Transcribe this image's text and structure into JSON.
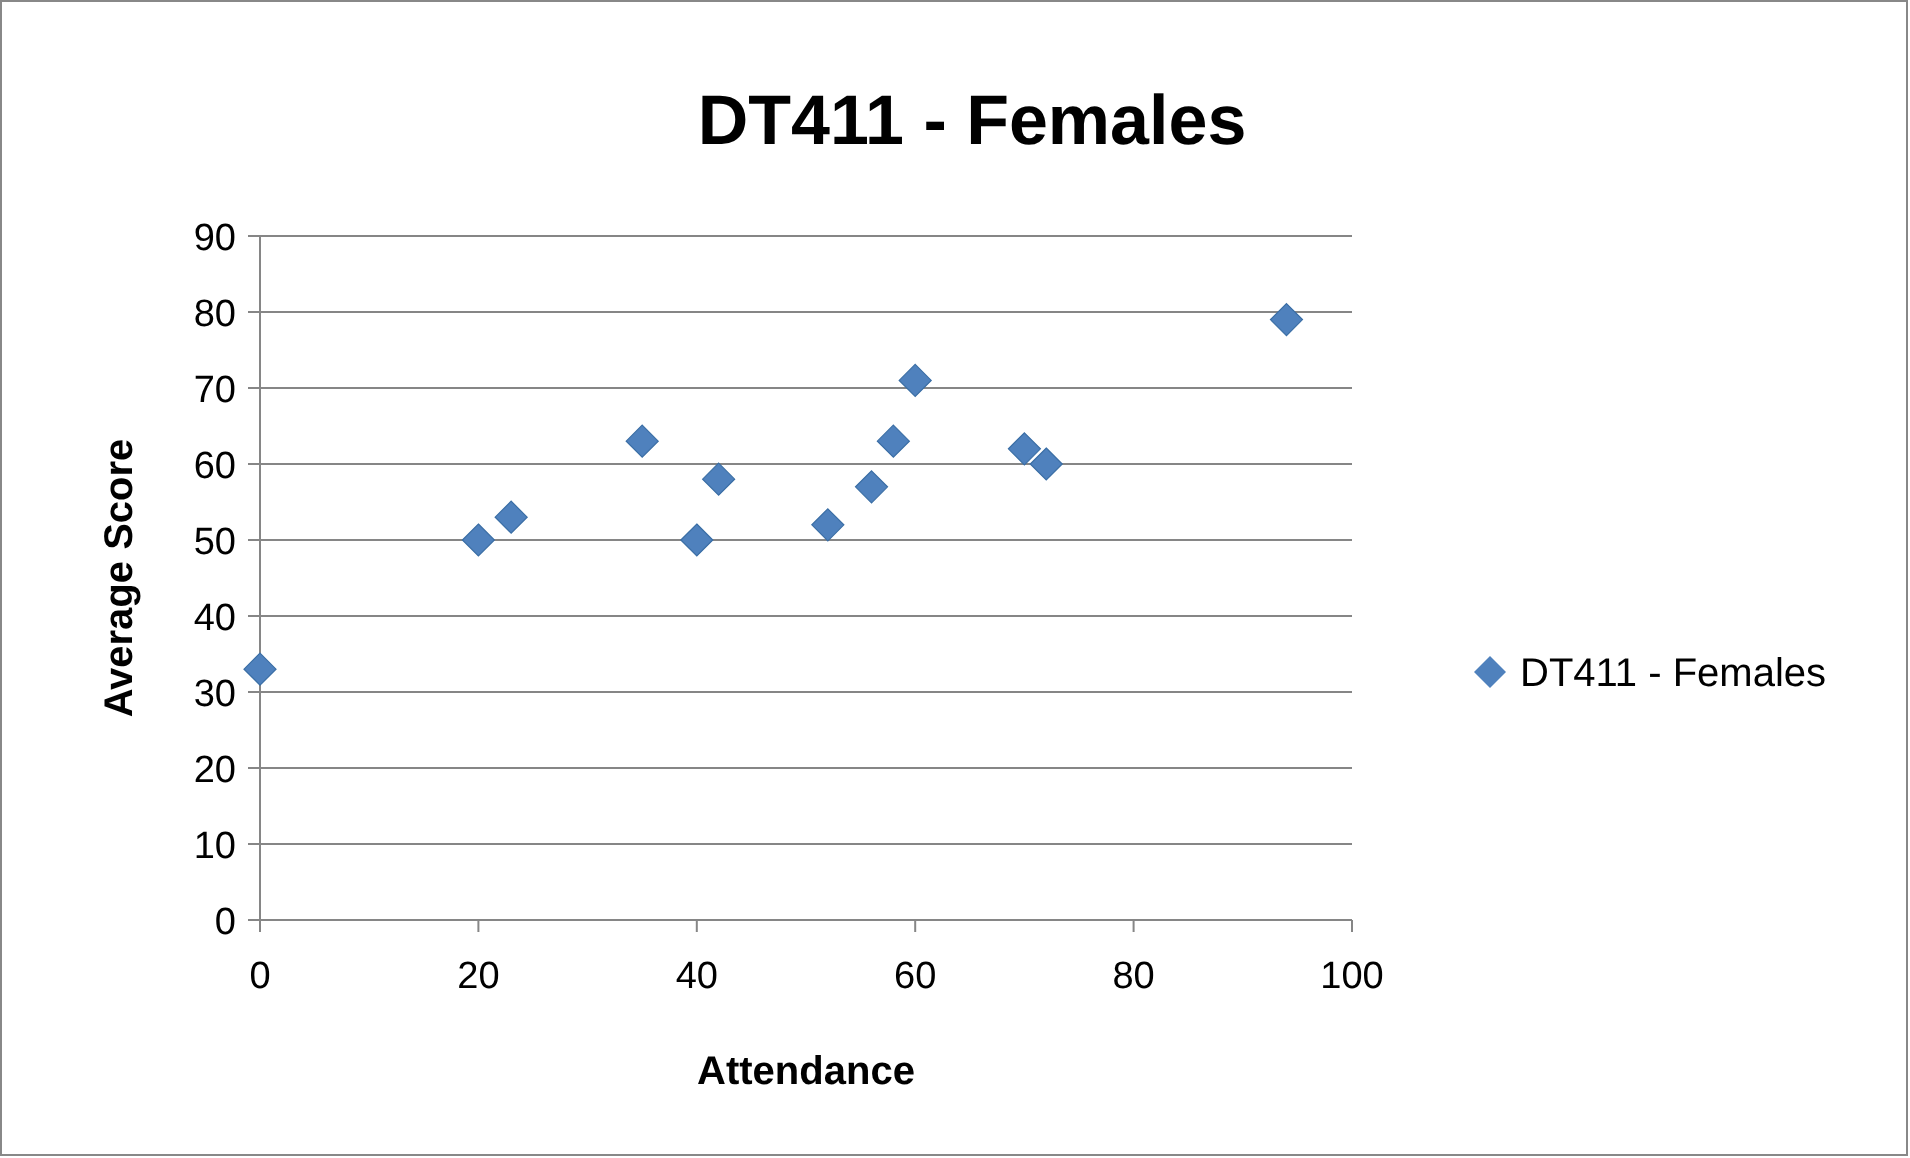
{
  "chart_data": {
    "type": "scatter",
    "title": "DT411 - Females",
    "xlabel": "Attendance",
    "ylabel": "Average Score",
    "xlim": [
      0,
      100
    ],
    "xticks": [
      0,
      20,
      40,
      60,
      80,
      100
    ],
    "ylim": [
      0,
      90
    ],
    "yticks": [
      0,
      10,
      20,
      30,
      40,
      50,
      60,
      70,
      80,
      90
    ],
    "grid": "y",
    "legend": "right",
    "marker": "diamond",
    "series": [
      {
        "name": "DT411 - Females",
        "color": "#4f81bd",
        "x": [
          0,
          20,
          23,
          35,
          40,
          42,
          52,
          56,
          58,
          60,
          70,
          72,
          94
        ],
        "values": [
          33,
          50,
          53,
          63,
          50,
          58,
          52,
          57,
          63,
          71,
          62,
          60,
          79
        ]
      }
    ]
  }
}
